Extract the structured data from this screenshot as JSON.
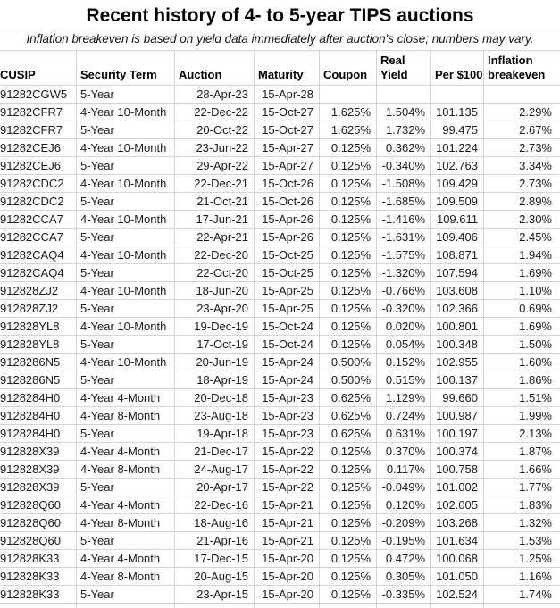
{
  "title": "Recent history of 4- to 5-year TIPS auctions",
  "subtitle": "Inflation breakeven is based on yield data immediately after auction's close; numbers may vary.",
  "header_display": [
    "CUSIP",
    "Security Term",
    "Auction",
    "Maturity",
    "Coupon",
    "Real\nYield",
    "Per $100",
    "Inflation\nbreakeven"
  ],
  "colors": {
    "gridline": "#d6d6d6",
    "text": "#1a1a1a",
    "background": "#ffffff"
  },
  "chart_data": {
    "type": "table",
    "title": "Recent history of 4- to 5-year TIPS auctions",
    "subtitle": "Inflation breakeven is based on yield data immediately after auction's close; numbers may vary.",
    "columns": [
      "CUSIP",
      "Security Term",
      "Auction",
      "Maturity",
      "Coupon",
      "Real Yield",
      "Per $100",
      "Inflation breakeven"
    ],
    "rows": [
      [
        "91282CGW5",
        "5-Year",
        "28-Apr-23",
        "15-Apr-28",
        "",
        "",
        "",
        ""
      ],
      [
        "91282CFR7",
        "4-Year 10-Month",
        "22-Dec-22",
        "15-Oct-27",
        "1.625%",
        "1.504%",
        "101.135",
        "2.29%"
      ],
      [
        "91282CFR7",
        "5-Year",
        "20-Oct-22",
        "15-Oct-27",
        "1.625%",
        "1.732%",
        "99.475",
        "2.67%"
      ],
      [
        "91282CEJ6",
        "4-Year 10-Month",
        "23-Jun-22",
        "15-Apr-27",
        "0.125%",
        "0.362%",
        "101.224",
        "2.73%"
      ],
      [
        "91282CEJ6",
        "5-Year",
        "29-Apr-22",
        "15-Apr-27",
        "0.125%",
        "-0.340%",
        "102.763",
        "3.34%"
      ],
      [
        "91282CDC2",
        "4-Year 10-Month",
        "22-Dec-21",
        "15-Oct-26",
        "0.125%",
        "-1.508%",
        "109.429",
        "2.73%"
      ],
      [
        "91282CDC2",
        "5-Year",
        "21-Oct-21",
        "15-Oct-26",
        "0.125%",
        "-1.685%",
        "109.509",
        "2.89%"
      ],
      [
        "91282CCA7",
        "4-Year 10-Month",
        "17-Jun-21",
        "15-Apr-26",
        "0.125%",
        "-1.416%",
        "109.611",
        "2.30%"
      ],
      [
        "91282CCA7",
        "5-Year",
        "22-Apr-21",
        "15-Apr-26",
        "0.125%",
        "-1.631%",
        "109.406",
        "2.45%"
      ],
      [
        "91282CAQ4",
        "4-Year 10-Month",
        "22-Dec-20",
        "15-Oct-25",
        "0.125%",
        "-1.575%",
        "108.871",
        "1.94%"
      ],
      [
        "91282CAQ4",
        "5-Year",
        "22-Oct-20",
        "15-Oct-25",
        "0.125%",
        "-1.320%",
        "107.594",
        "1.69%"
      ],
      [
        "912828ZJ2",
        "4-Year 10-Month",
        "18-Jun-20",
        "15-Apr-25",
        "0.125%",
        "-0.766%",
        "103.608",
        "1.10%"
      ],
      [
        "912828ZJ2",
        "5-Year",
        "23-Apr-20",
        "15-Apr-25",
        "0.125%",
        "-0.320%",
        "102.366",
        "0.69%"
      ],
      [
        "912828YL8",
        "4-Year 10-Month",
        "19-Dec-19",
        "15-Oct-24",
        "0.125%",
        "0.020%",
        "100.801",
        "1.69%"
      ],
      [
        "912828YL8",
        "5-Year",
        "17-Oct-19",
        "15-Oct-24",
        "0.125%",
        "0.054%",
        "100.348",
        "1.50%"
      ],
      [
        "9128286N5",
        "4-Year 10-Month",
        "20-Jun-19",
        "15-Apr-24",
        "0.500%",
        "0.152%",
        "102.955",
        "1.60%"
      ],
      [
        "9128286N5",
        "5-Year",
        "18-Apr-19",
        "15-Apr-24",
        "0.500%",
        "0.515%",
        "100.137",
        "1.86%"
      ],
      [
        "9128284H0",
        "4-Year 4-Month",
        "20-Dec-18",
        "15-Apr-23",
        "0.625%",
        "1.129%",
        "99.660",
        "1.51%"
      ],
      [
        "9128284H0",
        "4-Year 8-Month",
        "23-Aug-18",
        "15-Apr-23",
        "0.625%",
        "0.724%",
        "100.987",
        "1.99%"
      ],
      [
        "9128284H0",
        "5-Year",
        "19-Apr-18",
        "15-Apr-23",
        "0.625%",
        "0.631%",
        "100.197",
        "2.13%"
      ],
      [
        "912828X39",
        "4-Year 4-Month",
        "21-Dec-17",
        "15-Apr-22",
        "0.125%",
        "0.370%",
        "100.374",
        "1.87%"
      ],
      [
        "912828X39",
        "4-Year 8-Month",
        "24-Aug-17",
        "15-Apr-22",
        "0.125%",
        "0.117%",
        "100.758",
        "1.66%"
      ],
      [
        "912828X39",
        "5-Year",
        "20-Apr-17",
        "15-Apr-22",
        "0.125%",
        "-0.049%",
        "101.002",
        "1.77%"
      ],
      [
        "912828Q60",
        "4-Year 4-Month",
        "22-Dec-16",
        "15-Apr-21",
        "0.125%",
        "0.120%",
        "102.005",
        "1.83%"
      ],
      [
        "912828Q60",
        "4-Year 8-Month",
        "18-Aug-16",
        "15-Apr-21",
        "0.125%",
        "-0.209%",
        "103.268",
        "1.32%"
      ],
      [
        "912828Q60",
        "5-Year",
        "21-Apr-16",
        "15-Apr-21",
        "0.125%",
        "-0.195%",
        "101.634",
        "1.53%"
      ],
      [
        "912828K33",
        "4-Year 4-Month",
        "17-Dec-15",
        "15-Apr-20",
        "0.125%",
        "0.472%",
        "100.068",
        "1.25%"
      ],
      [
        "912828K33",
        "4-Year 8-Month",
        "20-Aug-15",
        "15-Apr-20",
        "0.125%",
        "0.305%",
        "101.050",
        "1.16%"
      ],
      [
        "912828K33",
        "5-Year",
        "23-Apr-15",
        "15-Apr-20",
        "0.125%",
        "-0.335%",
        "102.524",
        "1.74%"
      ]
    ]
  }
}
